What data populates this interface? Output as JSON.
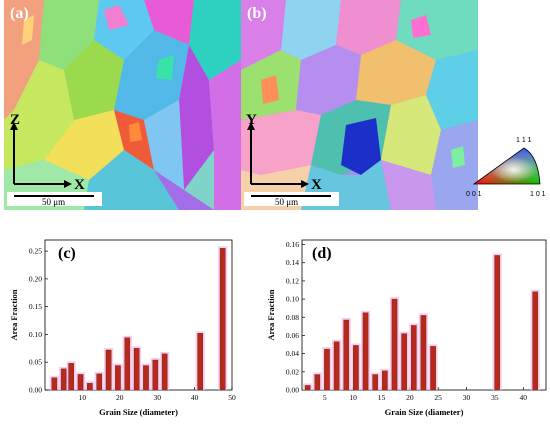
{
  "panels": {
    "a": {
      "label": "(a)",
      "axis_v": "Z",
      "axis_h": "X",
      "scale": "50 μm"
    },
    "b": {
      "label": "(b)",
      "axis_v": "Y",
      "axis_h": "X",
      "scale": "50 μm"
    }
  },
  "ipf_legend": {
    "top": "1 1 1",
    "left": "0 0 1",
    "right": "1 0 1"
  },
  "chart_data": [
    {
      "type": "bar",
      "panel_label": "(c)",
      "xlabel": "Grain Size (diameter)",
      "ylabel": "Area Fraction",
      "xlim": [
        0,
        50
      ],
      "ylim": [
        0,
        0.27
      ],
      "xticks": [
        10,
        20,
        30,
        40,
        50
      ],
      "yticks": [
        0.0,
        0.05,
        0.1,
        0.15,
        0.2,
        0.25
      ],
      "ytick_labels": [
        "0.00",
        "0.05",
        "0.10",
        "0.15",
        "0.20",
        "0.25"
      ],
      "bar_color": "#b52a1a",
      "halo_color": "#f2c6ec",
      "x": [
        2.5,
        5,
        7,
        9.5,
        12,
        14.5,
        17,
        19.5,
        22,
        24.5,
        27,
        29.5,
        32,
        41.5,
        47.5
      ],
      "values": [
        0.022,
        0.038,
        0.048,
        0.028,
        0.012,
        0.029,
        0.072,
        0.044,
        0.094,
        0.075,
        0.044,
        0.054,
        0.065,
        0.102,
        0.255
      ]
    },
    {
      "type": "bar",
      "panel_label": "(d)",
      "xlabel": "Grain Size (diameter)",
      "ylabel": "Area Fraction",
      "xlim": [
        1,
        44
      ],
      "ylim": [
        0,
        0.165
      ],
      "xticks": [
        5,
        10,
        15,
        20,
        25,
        30,
        35,
        40
      ],
      "yticks": [
        0.0,
        0.02,
        0.04,
        0.06,
        0.08,
        0.1,
        0.12,
        0.14,
        0.16
      ],
      "ytick_labels": [
        "0.00",
        "0.02",
        "0.04",
        "0.06",
        "0.08",
        "0.10",
        "0.12",
        "0.14",
        "0.16"
      ],
      "bar_color": "#b52a1a",
      "halo_color": "#f2c6ec",
      "x": [
        2,
        3.7,
        5.4,
        7.1,
        8.8,
        10.5,
        12.2,
        13.9,
        15.6,
        17.3,
        19,
        20.7,
        22.4,
        24.1,
        25.8,
        27.5,
        35.4,
        42.1
      ],
      "values": [
        0.005,
        0.017,
        0.045,
        0.053,
        0.077,
        0.049,
        0.085,
        0.017,
        0.021,
        0.1,
        0.062,
        0.071,
        0.082,
        0.048,
        0.0,
        0.0,
        0.148,
        0.108
      ]
    }
  ]
}
